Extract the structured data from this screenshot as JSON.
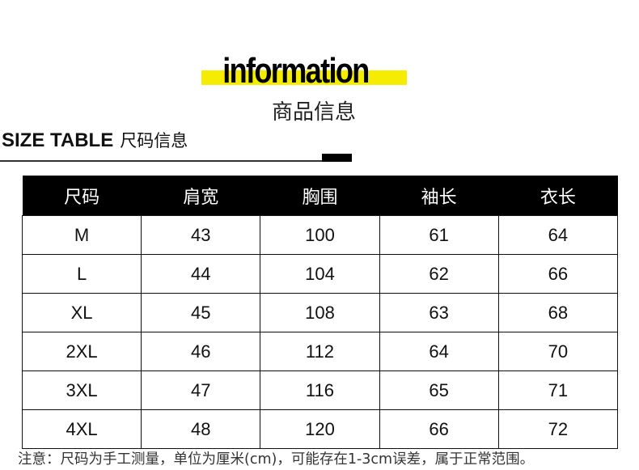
{
  "header": {
    "title": "information",
    "subtitle": "商品信息",
    "accent": "#f5ec00"
  },
  "section": {
    "title": "SIZE TABLE",
    "title_cn": "尺码信息"
  },
  "table": {
    "columns": [
      "尺码",
      "肩宽",
      "胸围",
      "袖长",
      "衣长"
    ],
    "rows": [
      [
        "M",
        "43",
        "100",
        "61",
        "64"
      ],
      [
        "L",
        "44",
        "104",
        "62",
        "66"
      ],
      [
        "XL",
        "45",
        "108",
        "63",
        "68"
      ],
      [
        "2XL",
        "46",
        "112",
        "64",
        "70"
      ],
      [
        "3XL",
        "47",
        "116",
        "65",
        "71"
      ],
      [
        "4XL",
        "48",
        "120",
        "66",
        "72"
      ]
    ]
  },
  "note": "注意：尺码为手工测量，单位为厘米(cm)，可能存在1-3cm误差，属于正常范围。"
}
